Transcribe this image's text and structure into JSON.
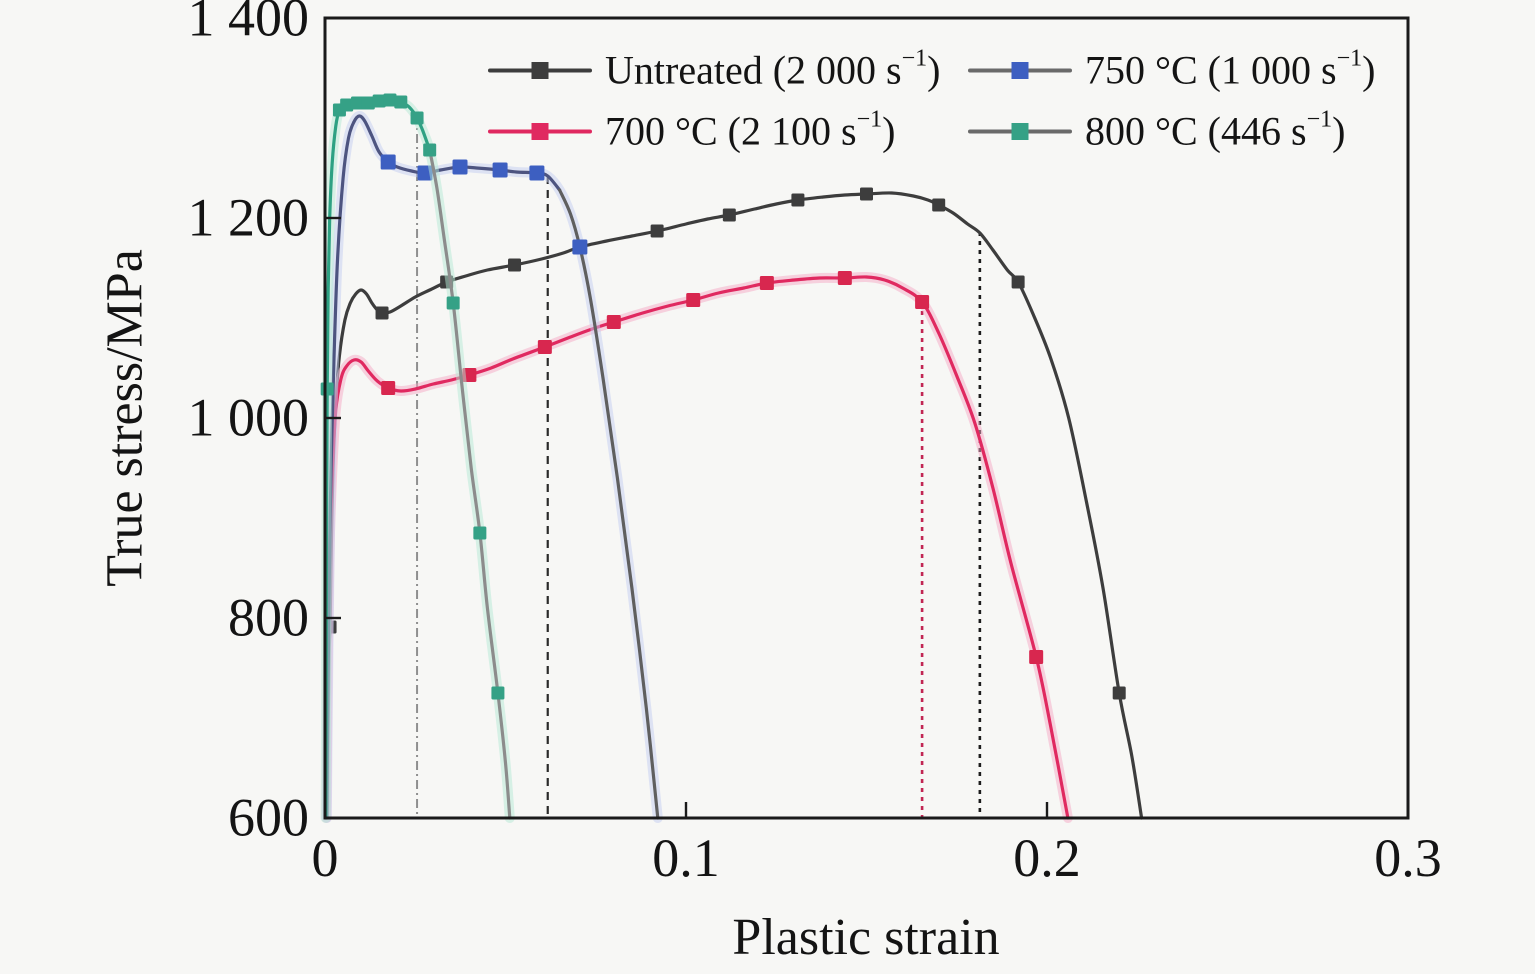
{
  "figure": {
    "background": "#f7f7f5",
    "frame_color": "#1a1a1a"
  },
  "chart_data": {
    "type": "line",
    "title": "",
    "xlabel": "Plastic strain",
    "ylabel": "True stress/MPa",
    "xlim": [
      0,
      0.3
    ],
    "ylim": [
      600,
      1400
    ],
    "grid": false,
    "legend_position": "top-inside-two-columns",
    "xticks": [
      0,
      0.1,
      0.2,
      0.3
    ],
    "xtick_labels": [
      "0",
      "0.1",
      "0.2",
      "0.3"
    ],
    "yticks": [
      600,
      800,
      1000,
      1200,
      1400
    ],
    "ytick_labels": [
      "600",
      "800",
      "1 000",
      "1 200",
      "1 400"
    ],
    "legend": [
      {
        "pre": "Untreated (2 000 s",
        "sup": "−1",
        "post": ")",
        "line_color": "#3d3d3d",
        "marker_color": "#3d3d3d"
      },
      {
        "pre": "750 °C (1 000 s",
        "sup": "−1",
        "post": ")",
        "line_color": "#6a6a6a",
        "marker_color": "#3d5fc1"
      },
      {
        "pre": "700 °C (2 100 s",
        "sup": "−1",
        "post": ")",
        "line_color": "#e02960",
        "marker_color": "#e02960"
      },
      {
        "pre": "800 °C (446 s",
        "sup": "−1",
        "post": ")",
        "line_color": "#6a6a6a",
        "marker_color": "#35a186"
      }
    ],
    "series": [
      {
        "name": "Untreated (2 000 s⁻¹)",
        "line_color": "#3d3d3d",
        "marker_color": "#3d3d3d",
        "marker_size": 13,
        "points": [
          [
            0.0007,
            600
          ],
          [
            0.0009,
            690
          ],
          [
            0.0012,
            770
          ],
          [
            0.0014,
            791
          ],
          [
            0.0017,
            860
          ],
          [
            0.0022,
            945
          ],
          [
            0.003,
            1015
          ],
          [
            0.004,
            1062
          ],
          [
            0.0055,
            1098
          ],
          [
            0.007,
            1115
          ],
          [
            0.0085,
            1124
          ],
          [
            0.01,
            1128
          ],
          [
            0.0115,
            1124
          ],
          [
            0.013,
            1115
          ],
          [
            0.0145,
            1108
          ],
          [
            0.0158,
            1105
          ],
          [
            0.018,
            1106
          ],
          [
            0.021,
            1112
          ],
          [
            0.025,
            1121
          ],
          [
            0.029,
            1128
          ],
          [
            0.0337,
            1136
          ],
          [
            0.039,
            1142
          ],
          [
            0.045,
            1148
          ],
          [
            0.0525,
            1153
          ],
          [
            0.06,
            1159
          ],
          [
            0.066,
            1165
          ],
          [
            0.0706,
            1171
          ],
          [
            0.078,
            1177
          ],
          [
            0.085,
            1182
          ],
          [
            0.092,
            1187
          ],
          [
            0.1,
            1194
          ],
          [
            0.106,
            1199
          ],
          [
            0.112,
            1203
          ],
          [
            0.119,
            1209
          ],
          [
            0.125,
            1214
          ],
          [
            0.131,
            1218
          ],
          [
            0.138,
            1221
          ],
          [
            0.144,
            1223
          ],
          [
            0.15,
            1224
          ],
          [
            0.157,
            1225
          ],
          [
            0.163,
            1222
          ],
          [
            0.167,
            1218
          ],
          [
            0.17,
            1213
          ],
          [
            0.174,
            1205
          ],
          [
            0.178,
            1194
          ],
          [
            0.1814,
            1185
          ],
          [
            0.185,
            1168
          ],
          [
            0.189,
            1148
          ],
          [
            0.192,
            1136
          ],
          [
            0.196,
            1105
          ],
          [
            0.201,
            1060
          ],
          [
            0.206,
            1000
          ],
          [
            0.211,
            915
          ],
          [
            0.2155,
            830
          ],
          [
            0.22,
            725
          ],
          [
            0.2235,
            662
          ],
          [
            0.2262,
            600
          ]
        ],
        "markers": [
          [
            0.0014,
            791
          ],
          [
            0.0158,
            1105
          ],
          [
            0.0337,
            1136
          ],
          [
            0.0525,
            1153
          ],
          [
            0.092,
            1187
          ],
          [
            0.112,
            1203
          ],
          [
            0.131,
            1218
          ],
          [
            0.15,
            1224
          ],
          [
            0.17,
            1213
          ],
          [
            0.192,
            1136
          ],
          [
            0.22,
            725
          ]
        ]
      },
      {
        "name": "700 °C (2 100 s⁻¹)",
        "line_color": "#e02960",
        "glow_color": "#f6aac6",
        "marker_color": "#d8274f",
        "marker_size": 14,
        "points": [
          [
            0.0004,
            600
          ],
          [
            0.0006,
            690
          ],
          [
            0.0009,
            790
          ],
          [
            0.0013,
            875
          ],
          [
            0.002,
            945
          ],
          [
            0.003,
            1008
          ],
          [
            0.0045,
            1040
          ],
          [
            0.006,
            1052
          ],
          [
            0.008,
            1058
          ],
          [
            0.01,
            1056
          ],
          [
            0.012,
            1047
          ],
          [
            0.0145,
            1037
          ],
          [
            0.0175,
            1030
          ],
          [
            0.021,
            1027
          ],
          [
            0.025,
            1029
          ],
          [
            0.03,
            1034
          ],
          [
            0.035,
            1038
          ],
          [
            0.04,
            1043
          ],
          [
            0.046,
            1050
          ],
          [
            0.052,
            1059
          ],
          [
            0.0609,
            1071
          ],
          [
            0.068,
            1081
          ],
          [
            0.074,
            1089
          ],
          [
            0.08,
            1096
          ],
          [
            0.088,
            1105
          ],
          [
            0.095,
            1112
          ],
          [
            0.102,
            1118
          ],
          [
            0.109,
            1125
          ],
          [
            0.116,
            1130
          ],
          [
            0.1224,
            1135
          ],
          [
            0.13,
            1138
          ],
          [
            0.137,
            1140
          ],
          [
            0.144,
            1140
          ],
          [
            0.15,
            1141
          ],
          [
            0.155,
            1138
          ],
          [
            0.16,
            1130
          ],
          [
            0.1654,
            1116
          ],
          [
            0.17,
            1085
          ],
          [
            0.175,
            1042
          ],
          [
            0.18,
            995
          ],
          [
            0.185,
            930
          ],
          [
            0.19,
            855
          ],
          [
            0.197,
            761
          ],
          [
            0.201,
            692
          ],
          [
            0.2058,
            600
          ]
        ],
        "markers": [
          [
            0.0175,
            1030
          ],
          [
            0.04,
            1043
          ],
          [
            0.0609,
            1071
          ],
          [
            0.08,
            1096
          ],
          [
            0.102,
            1118
          ],
          [
            0.1224,
            1135
          ],
          [
            0.144,
            1140
          ],
          [
            0.1654,
            1116
          ],
          [
            0.197,
            761
          ]
        ]
      },
      {
        "name": "750 °C (1 000 s⁻¹)",
        "line_color": "#4d5480",
        "line_color2": "#5f5f5f",
        "split_at": 0.0635,
        "glow_color": "#c3cdf2",
        "marker_color": "#3d5fc1",
        "marker_size": 15,
        "points": [
          [
            0.0005,
            600
          ],
          [
            0.0008,
            720
          ],
          [
            0.0012,
            840
          ],
          [
            0.0017,
            950
          ],
          [
            0.0025,
            1060
          ],
          [
            0.0035,
            1160
          ],
          [
            0.005,
            1240
          ],
          [
            0.0065,
            1280
          ],
          [
            0.008,
            1296
          ],
          [
            0.0095,
            1302
          ],
          [
            0.011,
            1297
          ],
          [
            0.013,
            1282
          ],
          [
            0.015,
            1266
          ],
          [
            0.0175,
            1256
          ],
          [
            0.02,
            1251
          ],
          [
            0.024,
            1247
          ],
          [
            0.0277,
            1245
          ],
          [
            0.032,
            1248
          ],
          [
            0.0374,
            1251
          ],
          [
            0.042,
            1250
          ],
          [
            0.0485,
            1248
          ],
          [
            0.053,
            1246
          ],
          [
            0.0587,
            1245
          ],
          [
            0.0617,
            1242
          ],
          [
            0.065,
            1228
          ],
          [
            0.068,
            1204
          ],
          [
            0.0706,
            1171
          ],
          [
            0.0735,
            1120
          ],
          [
            0.077,
            1040
          ],
          [
            0.081,
            940
          ],
          [
            0.085,
            830
          ],
          [
            0.089,
            710
          ],
          [
            0.0922,
            600
          ]
        ],
        "markers": [
          [
            0.0175,
            1256
          ],
          [
            0.0277,
            1245
          ],
          [
            0.0374,
            1251
          ],
          [
            0.0485,
            1248
          ],
          [
            0.0587,
            1245
          ],
          [
            0.0706,
            1171
          ]
        ]
      },
      {
        "name": "800 °C (446 s⁻¹)",
        "line_color": "#2ea183",
        "line_color2": "#8c8c8c",
        "split_at": 0.028,
        "glow_color": "#b6e9d5",
        "marker_color": "#35a186",
        "marker_size": 13,
        "points": [
          [
            0.0002,
            600
          ],
          [
            0.0003,
            720
          ],
          [
            0.0004,
            860
          ],
          [
            0.0006,
            1029
          ],
          [
            0.0009,
            1130
          ],
          [
            0.0013,
            1200
          ],
          [
            0.002,
            1255
          ],
          [
            0.003,
            1292
          ],
          [
            0.004,
            1308
          ],
          [
            0.005,
            1311
          ],
          [
            0.006,
            1313
          ],
          [
            0.0075,
            1314
          ],
          [
            0.009,
            1315
          ],
          [
            0.0105,
            1315
          ],
          [
            0.012,
            1315
          ],
          [
            0.0135,
            1316
          ],
          [
            0.015,
            1317
          ],
          [
            0.0165,
            1318
          ],
          [
            0.018,
            1318
          ],
          [
            0.0195,
            1317
          ],
          [
            0.021,
            1316
          ],
          [
            0.023,
            1312
          ],
          [
            0.0245,
            1306
          ],
          [
            0.0255,
            1300
          ],
          [
            0.027,
            1288
          ],
          [
            0.029,
            1268
          ],
          [
            0.031,
            1230
          ],
          [
            0.033,
            1180
          ],
          [
            0.0355,
            1115
          ],
          [
            0.038,
            1030
          ],
          [
            0.0405,
            950
          ],
          [
            0.0429,
            885
          ],
          [
            0.045,
            810
          ],
          [
            0.0479,
            725
          ],
          [
            0.05,
            655
          ],
          [
            0.0512,
            600
          ]
        ],
        "markers": [
          [
            0.0006,
            1029
          ],
          [
            0.004,
            1308
          ],
          [
            0.006,
            1313
          ],
          [
            0.009,
            1315
          ],
          [
            0.012,
            1315
          ],
          [
            0.015,
            1317
          ],
          [
            0.018,
            1318
          ],
          [
            0.021,
            1316
          ],
          [
            0.0255,
            1300
          ],
          [
            0.029,
            1268
          ],
          [
            0.0355,
            1115
          ],
          [
            0.0429,
            885
          ],
          [
            0.0479,
            725
          ]
        ]
      }
    ],
    "reference_lines": [
      {
        "x": 0.0255,
        "y_top": 1303,
        "color": "#8f8f8f",
        "dash": "9 4 2 4",
        "width": 2
      },
      {
        "x": 0.0617,
        "y_top": 1242,
        "color": "#2a2a2a",
        "dash": "8 6",
        "width": 2.2
      },
      {
        "x": 0.1654,
        "y_top": 1116,
        "color": "#c22653",
        "dash": "4 5",
        "width": 2.6
      },
      {
        "x": 0.1814,
        "y_top": 1186,
        "color": "#1c1c1c",
        "dash": "4 5",
        "width": 2.6
      }
    ]
  }
}
